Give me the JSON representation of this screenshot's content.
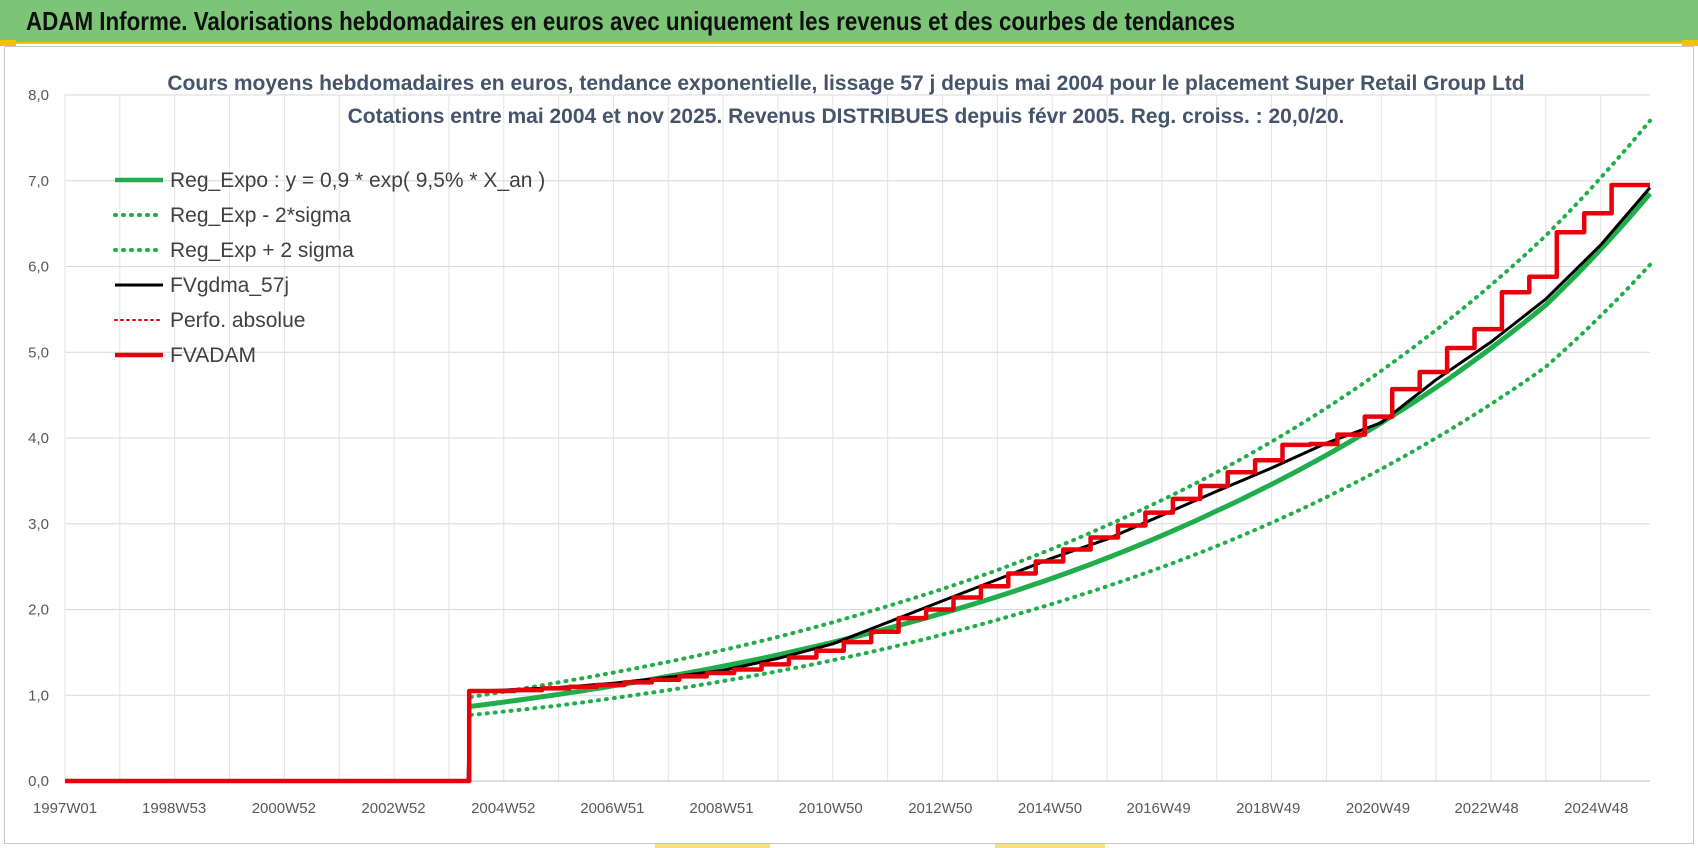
{
  "header": {
    "title": "ADAM Informe. Valorisations hebdomadaires en euros avec uniquement les revenus et des courbes de tendances"
  },
  "colors": {
    "header_bg": "#7cc576",
    "accent_yellow": "#f2c200",
    "reg_green": "#1fae4b",
    "series_black": "#000000",
    "series_red": "#e8000b",
    "title_text": "#44546a"
  },
  "chart_data": {
    "type": "line",
    "title_line1": "Cours moyens hebdomadaires en euros, tendance exponentielle, lissage 57 j depuis mai 2004 pour le placement Super Retail Group Ltd",
    "title_line2": "Cotations entre mai 2004 et nov 2025. Revenus DISTRIBUES depuis févr 2005. Reg. croiss. : 20,0/20.",
    "xlabel": "",
    "ylabel": "",
    "x_range": [
      1997.0,
      2025.9
    ],
    "ylim": [
      0,
      8
    ],
    "y_ticks": [
      "0,0",
      "1,0",
      "2,0",
      "3,0",
      "4,0",
      "5,0",
      "6,0",
      "7,0",
      "8,0"
    ],
    "x_ticks": [
      {
        "label": "1997W01",
        "x": 1997.0
      },
      {
        "label": "1998W53",
        "x": 1998.99
      },
      {
        "label": "2000W52",
        "x": 2000.99
      },
      {
        "label": "2002W52",
        "x": 2002.99
      },
      {
        "label": "2004W52",
        "x": 2004.99
      },
      {
        "label": "2006W51",
        "x": 2006.98
      },
      {
        "label": "2008W51",
        "x": 2008.97
      },
      {
        "label": "2010W50",
        "x": 2010.96
      },
      {
        "label": "2012W50",
        "x": 2012.96
      },
      {
        "label": "2014W50",
        "x": 2014.96
      },
      {
        "label": "2016W49",
        "x": 2016.94
      },
      {
        "label": "2018W49",
        "x": 2018.94
      },
      {
        "label": "2020W49",
        "x": 2020.94
      },
      {
        "label": "2022W48",
        "x": 2022.92
      },
      {
        "label": "2024W48",
        "x": 2024.92
      }
    ],
    "grid": true,
    "legend_position": "top-left",
    "legend": [
      {
        "label": "Reg_Expo : y = 0,9 * exp( 9,5% *  X_an )",
        "color": "#1fae4b",
        "style": "solid-thick"
      },
      {
        "label": "Reg_Exp - 2*sigma",
        "color": "#1fae4b",
        "style": "dotted"
      },
      {
        "label": "Reg_Exp + 2 sigma",
        "color": "#1fae4b",
        "style": "dotted"
      },
      {
        "label": "FVgdma_57j",
        "color": "#000000",
        "style": "solid"
      },
      {
        "label": "Perfo. absolue",
        "color": "#e8000b",
        "style": "dotted"
      },
      {
        "label": "FVADAM",
        "color": "#e8000b",
        "style": "solid-thick"
      }
    ],
    "series": [
      {
        "name": "Reg_Expo : y = 0,9 * exp( 9,5% *  X_an )",
        "x": [
          2004.4,
          2006.0,
          2008.0,
          2010.0,
          2012.0,
          2014.0,
          2016.0,
          2018.0,
          2020.0,
          2022.0,
          2024.0,
          2025.9
        ],
        "y": [
          0.87,
          1.01,
          1.22,
          1.47,
          1.78,
          2.15,
          2.6,
          3.15,
          3.8,
          4.59,
          5.55,
          6.85
        ]
      },
      {
        "name": "Reg_Exp - 2*sigma",
        "x": [
          2004.4,
          2006.0,
          2008.0,
          2010.0,
          2012.0,
          2014.0,
          2016.0,
          2018.0,
          2020.0,
          2022.0,
          2024.0,
          2025.9
        ],
        "y": [
          0.77,
          0.88,
          1.06,
          1.28,
          1.55,
          1.88,
          2.27,
          2.74,
          3.31,
          4.0,
          4.83,
          6.02
        ]
      },
      {
        "name": "Reg_Exp + 2 sigma",
        "x": [
          2004.4,
          2006.0,
          2008.0,
          2010.0,
          2012.0,
          2014.0,
          2016.0,
          2018.0,
          2020.0,
          2022.0,
          2024.0,
          2025.9
        ],
        "y": [
          0.98,
          1.15,
          1.39,
          1.68,
          2.04,
          2.46,
          2.98,
          3.6,
          4.35,
          5.26,
          6.36,
          7.7
        ]
      },
      {
        "name": "FVgdma_57j",
        "x": [
          1997.0,
          2004.35,
          2004.38,
          2005.0,
          2006.0,
          2007.0,
          2008.0,
          2009.0,
          2010.0,
          2011.0,
          2012.0,
          2013.0,
          2014.0,
          2015.0,
          2016.0,
          2017.0,
          2018.0,
          2019.0,
          2020.0,
          2021.0,
          2022.0,
          2023.0,
          2024.0,
          2025.0,
          2025.9
        ],
        "y": [
          0,
          0,
          1.05,
          1.06,
          1.09,
          1.14,
          1.21,
          1.29,
          1.43,
          1.6,
          1.85,
          2.1,
          2.35,
          2.6,
          2.82,
          3.1,
          3.38,
          3.65,
          3.94,
          4.18,
          4.68,
          5.12,
          5.62,
          6.25,
          6.92
        ]
      },
      {
        "name": "Perfo. absolue",
        "x": [
          1997.0,
          2004.35,
          2004.38,
          2025.9
        ],
        "y": [
          0,
          0,
          1.05,
          6.95
        ]
      },
      {
        "name": "FVADAM",
        "x": [
          1997.0,
          2004.36,
          2004.37,
          2005.2,
          2005.7,
          2006.2,
          2006.7,
          2007.2,
          2007.7,
          2008.2,
          2008.7,
          2009.2,
          2009.7,
          2010.2,
          2010.7,
          2011.2,
          2011.7,
          2012.2,
          2012.7,
          2013.2,
          2013.7,
          2014.2,
          2014.7,
          2015.2,
          2015.7,
          2016.2,
          2016.7,
          2017.2,
          2017.7,
          2018.2,
          2018.7,
          2019.2,
          2019.7,
          2020.2,
          2020.7,
          2021.2,
          2021.7,
          2022.2,
          2022.7,
          2023.2,
          2023.7,
          2024.2,
          2024.7,
          2025.2,
          2025.9
        ],
        "y": [
          0,
          0,
          1.05,
          1.06,
          1.08,
          1.1,
          1.12,
          1.15,
          1.18,
          1.22,
          1.26,
          1.3,
          1.36,
          1.44,
          1.52,
          1.62,
          1.74,
          1.9,
          2.0,
          2.14,
          2.27,
          2.42,
          2.56,
          2.7,
          2.84,
          2.98,
          3.13,
          3.29,
          3.44,
          3.6,
          3.74,
          3.92,
          3.93,
          4.04,
          4.25,
          4.57,
          4.77,
          5.05,
          5.27,
          5.7,
          5.88,
          6.4,
          6.62,
          6.95,
          6.95
        ]
      }
    ]
  }
}
